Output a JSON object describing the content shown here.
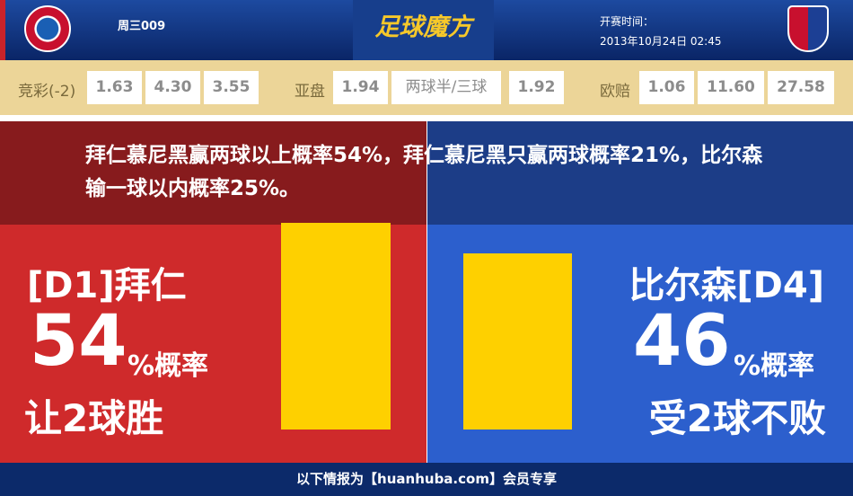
{
  "header": {
    "match_id": "周三009",
    "brand": "足球魔方",
    "time_label": "开赛时间：",
    "time_value": "2013年10月24日 02:45",
    "home_logo": "bayern-logo",
    "away_logo": "plzen-logo"
  },
  "odds": {
    "jc_label": "竞彩(-2)",
    "jc": [
      "1.63",
      "4.30",
      "3.55"
    ],
    "ya_label": "亚盘",
    "ya": [
      "1.94",
      "两球半/三球",
      "1.92"
    ],
    "ou_label": "欧赔",
    "ou": [
      "1.06",
      "11.60",
      "27.58"
    ]
  },
  "summary": "拜仁慕尼黑赢两球以上概率54%，拜仁慕尼黑只赢两球概率21%，比尔森输一球以内概率25%。",
  "home": {
    "team": "[D1]拜仁",
    "pct": "54",
    "pct_suffix": "%概率",
    "result": "让2球胜",
    "probability": 54
  },
  "away": {
    "team": "比尔森[D4]",
    "pct": "46",
    "pct_suffix": "%概率",
    "result": "受2球不败",
    "probability": 46
  },
  "colors": {
    "home": "#cf2a2b",
    "away": "#2c5fcd",
    "bar": "#fed000"
  },
  "footer": "以下情报为【huanhuba.com】会员专享"
}
